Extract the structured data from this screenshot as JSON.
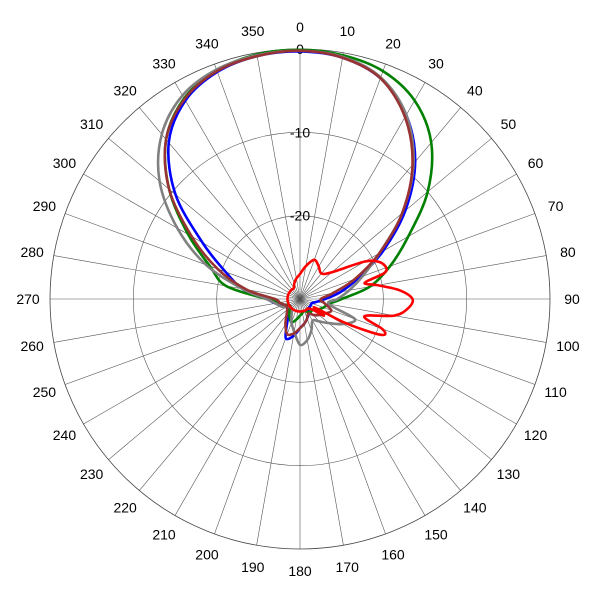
{
  "chart_data": {
    "type": "polar-line",
    "title": "",
    "angle_ticks": [
      "0",
      "10",
      "20",
      "30",
      "40",
      "50",
      "60",
      "70",
      "80",
      "90",
      "100",
      "110",
      "120",
      "130",
      "140",
      "150",
      "160",
      "170",
      "180",
      "190",
      "200",
      "210",
      "220",
      "230",
      "240",
      "250",
      "260",
      "270",
      "280",
      "290",
      "300",
      "310",
      "320",
      "330",
      "340",
      "350"
    ],
    "radial_ticks": [
      "0",
      "-10",
      "-20"
    ],
    "radial_range": [
      -30,
      0
    ],
    "grid": true,
    "series": [
      {
        "color": "#0000ff",
        "angles": [
          0,
          10,
          20,
          30,
          40,
          50,
          60,
          70,
          80,
          90,
          100,
          110,
          120,
          130,
          140,
          150,
          160,
          170,
          180,
          190,
          200,
          210,
          220,
          230,
          240,
          250,
          260,
          270,
          280,
          290,
          300,
          310,
          320,
          330,
          340,
          350
        ],
        "values": [
          -0.3,
          -0.6,
          -1.8,
          -4.5,
          -8.5,
          -13.5,
          -18.5,
          -22.5,
          -25,
          -27,
          -28,
          -28.5,
          -28.5,
          -28.5,
          -28.5,
          -28,
          -27.5,
          -27,
          -26.5,
          -25.5,
          -25,
          -27,
          -28,
          -28.5,
          -28.5,
          -28,
          -27,
          -26,
          -23,
          -20.5,
          -16.5,
          -10.5,
          -5.5,
          -2.5,
          -1,
          -0.4
        ]
      },
      {
        "color": "#008000",
        "angles": [
          0,
          10,
          20,
          30,
          40,
          50,
          60,
          70,
          80,
          90,
          100,
          110,
          120,
          130,
          140,
          150,
          160,
          170,
          180,
          190,
          200,
          210,
          220,
          230,
          240,
          250,
          260,
          270,
          280,
          290,
          300,
          310,
          320,
          330,
          340,
          350
        ],
        "values": [
          -0.1,
          -0.3,
          -0.9,
          -2.5,
          -5.5,
          -10,
          -15,
          -18.5,
          -21.5,
          -25,
          -26.5,
          -27,
          -27.5,
          -28,
          -28,
          -28.2,
          -28.5,
          -28.3,
          -28,
          -27.5,
          -27,
          -27.5,
          -28,
          -28.5,
          -28.5,
          -28,
          -27.5,
          -26,
          -21,
          -18.5,
          -14.5,
          -9.5,
          -5,
          -2.2,
          -0.8,
          -0.2
        ]
      },
      {
        "color": "#808080",
        "angles": [
          0,
          10,
          20,
          30,
          40,
          50,
          60,
          70,
          80,
          90,
          100,
          110,
          120,
          130,
          140,
          150,
          160,
          170,
          180,
          190,
          200,
          210,
          220,
          230,
          240,
          250,
          260,
          270,
          280,
          290,
          300,
          310,
          320,
          330,
          340,
          350
        ],
        "values": [
          -0.2,
          -0.5,
          -1.7,
          -4.5,
          -8.8,
          -14,
          -19,
          -22,
          -24,
          -25.5,
          -26.5,
          -23,
          -24,
          -25.5,
          -26.5,
          -27,
          -26,
          -25,
          -24.5,
          -26,
          -27,
          -28,
          -28.5,
          -28.5,
          -28,
          -27.5,
          -27,
          -26,
          -23,
          -18,
          -13,
          -8,
          -4.2,
          -1.8,
          -0.7,
          -0.3
        ]
      },
      {
        "color": "#993333",
        "angles": [
          0,
          10,
          20,
          30,
          40,
          50,
          60,
          70,
          80,
          90,
          100,
          110,
          120,
          130,
          140,
          150,
          160,
          170,
          180,
          190,
          200,
          210,
          220,
          230,
          240,
          250,
          260,
          270,
          280,
          290,
          300,
          310,
          320,
          330,
          340,
          350
        ],
        "values": [
          -0.2,
          -0.6,
          -1.8,
          -4.8,
          -9,
          -14,
          -19,
          -23,
          -26,
          -27.5,
          -27,
          -26,
          -26.5,
          -27,
          -27.5,
          -28,
          -27.5,
          -27,
          -26.5,
          -25.8,
          -25.5,
          -26.5,
          -27.5,
          -28,
          -28.2,
          -28,
          -27.5,
          -27,
          -23.5,
          -19.5,
          -15,
          -9.5,
          -5,
          -2.3,
          -0.9,
          -0.4
        ]
      },
      {
        "color": "#ff0000",
        "angles": [
          0,
          10,
          20,
          30,
          40,
          50,
          60,
          65,
          70,
          73,
          76,
          80,
          85,
          90,
          95,
          100,
          105,
          110,
          113,
          115,
          118,
          120,
          125,
          130,
          140,
          150,
          160,
          170,
          180,
          190,
          200,
          210,
          220,
          230,
          240,
          250,
          260,
          270,
          280,
          290,
          300,
          310,
          320,
          330,
          340,
          350
        ],
        "values": [
          -27,
          -26,
          -25,
          -25.5,
          -26,
          -25,
          -21,
          -19.5,
          -19,
          -19.5,
          -22,
          -20.5,
          -18,
          -16.5,
          -17,
          -18.5,
          -22,
          -19.5,
          -19,
          -20.5,
          -24,
          -28,
          -26.5,
          -28,
          -28.5,
          -28.5,
          -28.5,
          -28.5,
          -28.5,
          -28.5,
          -28.5,
          -28.5,
          -28.5,
          -28.5,
          -28.5,
          -28.5,
          -28.5,
          -28.5,
          -28.5,
          -28.5,
          -28.5,
          -28.5,
          -28.5,
          -28.5,
          -28,
          -27.5
        ]
      }
    ]
  }
}
